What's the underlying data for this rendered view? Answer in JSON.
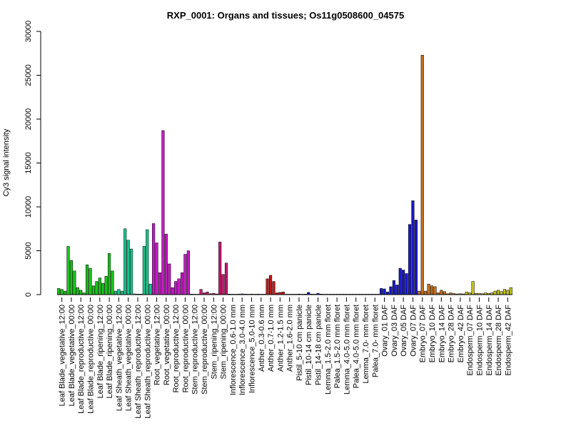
{
  "chart_data": {
    "type": "bar",
    "title": "RXP_0001: Organs and tissues; Os11g0508600_04575",
    "ylabel": "Cy3 signal intensity",
    "xlabel": "",
    "ylim": [
      0,
      30000
    ],
    "yticks": [
      0,
      5000,
      10000,
      15000,
      20000,
      25000,
      30000
    ],
    "grid": false,
    "groups": [
      {
        "label": "Leaf Blade_vegetative_12:00",
        "color": "#19c419",
        "values": [
          700,
          600,
          400
        ]
      },
      {
        "label": "Leaf Blade_vegetative_00:00",
        "color": "#19c419",
        "values": [
          5500,
          3900,
          2700
        ]
      },
      {
        "label": "Leaf Blade_reproductive_12:00",
        "color": "#19c419",
        "values": [
          800,
          500,
          200
        ]
      },
      {
        "label": "Leaf Blade_reproductive_00:00",
        "color": "#19c419",
        "values": [
          3400,
          3000,
          1000
        ]
      },
      {
        "label": "Leaf Blade_ripening_12:00",
        "color": "#19c419",
        "values": [
          1500,
          1900,
          1300
        ]
      },
      {
        "label": "Leaf Blade_ripening_00:00",
        "color": "#19c419",
        "values": [
          2100,
          4700,
          2700
        ]
      },
      {
        "label": "Leaf Sheath_vegetative_12:00",
        "color": "#19c48c",
        "values": [
          400,
          600,
          400
        ]
      },
      {
        "label": "Leaf Sheath_vegetative_00:00",
        "color": "#19c48c",
        "values": [
          7500,
          6200,
          5200
        ]
      },
      {
        "label": "Leaf Sheath_reproductive_12:00",
        "color": "#19c48c",
        "values": [
          80,
          60,
          60
        ]
      },
      {
        "label": "Leaf Sheath_reproductive_00:00",
        "color": "#19c48c",
        "values": [
          5500,
          7400,
          1200
        ]
      },
      {
        "label": "Root_vegetative_12:00",
        "color": "#c419c4",
        "values": [
          8100,
          5900,
          2500
        ]
      },
      {
        "label": "Root_vegetative_00:00",
        "color": "#c419c4",
        "values": [
          18700,
          6900,
          3500
        ]
      },
      {
        "label": "Root_reproductive_12:00",
        "color": "#c419c4",
        "values": [
          800,
          1500,
          1800
        ]
      },
      {
        "label": "Root_reproductive_00:00",
        "color": "#c419c4",
        "values": [
          2500,
          4600,
          5000
        ]
      },
      {
        "label": "Stem_reproductive_12:00",
        "color": "#c4196e",
        "values": [
          60,
          50,
          50
        ]
      },
      {
        "label": "Stem_reproductive_00:00",
        "color": "#c4196e",
        "values": [
          600,
          200,
          300
        ]
      },
      {
        "label": "Stem_ripening_12:00",
        "color": "#c4196e",
        "values": [
          100,
          150,
          80
        ]
      },
      {
        "label": "Stem_ripening_00:00",
        "color": "#c4196e",
        "values": [
          6000,
          2300,
          3600
        ]
      },
      {
        "label": "Inflorescence_0.6-1.0 mm",
        "color": "#1919c4",
        "values": [
          60,
          50,
          50
        ]
      },
      {
        "label": "Inflorescence_3.0-4.0 mm",
        "color": "#1919c4",
        "values": [
          60,
          80,
          60
        ]
      },
      {
        "label": "Inflorescence_5.0-10 mm",
        "color": "#1919c4",
        "values": [
          50,
          60,
          50
        ]
      },
      {
        "label": "Anther_0.3-0.6 mm",
        "color": "#c41919",
        "values": [
          60,
          50,
          50
        ]
      },
      {
        "label": "Anther_0.7-1.0 mm",
        "color": "#c41919",
        "values": [
          1800,
          2200,
          1500
        ]
      },
      {
        "label": "Anther_1.2-1.5 mm",
        "color": "#c41919",
        "values": [
          200,
          250,
          300
        ]
      },
      {
        "label": "Anther_1.6-2.0 mm",
        "color": "#c41919",
        "values": [
          50,
          50,
          50
        ]
      },
      {
        "label": "Pistil_5-10 cm panicle",
        "color": "#1919c4",
        "values": [
          50,
          60,
          50
        ]
      },
      {
        "label": "Pistil_10-14 cm panicle",
        "color": "#1919c4",
        "values": [
          60,
          250,
          60
        ]
      },
      {
        "label": "Pistil_14-18 cm panicle",
        "color": "#1919c4",
        "values": [
          50,
          150,
          60
        ]
      },
      {
        "label": "Lemma_1.5-2.0 mm floret",
        "color": "#1919c4",
        "values": [
          50,
          50,
          50
        ]
      },
      {
        "label": "Palea_1.5-2.0 mm floret",
        "color": "#1919c4",
        "values": [
          50,
          50,
          50
        ]
      },
      {
        "label": "Lemma_4.0-5.0 mm floret",
        "color": "#1919c4",
        "values": [
          50,
          50,
          50
        ]
      },
      {
        "label": "Palea_4.0-5.0 mm floret",
        "color": "#1919c4",
        "values": [
          50,
          50,
          50
        ]
      },
      {
        "label": "Lemma_7.0- mm floret",
        "color": "#1919c4",
        "values": [
          50,
          50,
          50
        ]
      },
      {
        "label": "Palea_7.0- mm floret",
        "color": "#1919c4",
        "values": [
          50,
          50,
          50
        ]
      },
      {
        "label": "Ovary_01 DAF",
        "color": "#1919c4",
        "values": [
          700,
          650,
          300
        ]
      },
      {
        "label": "Ovary_03 DAF",
        "color": "#1919c4",
        "values": [
          900,
          1600,
          1100
        ]
      },
      {
        "label": "Ovary_05 DAF",
        "color": "#1919c4",
        "values": [
          3000,
          2800,
          2400
        ]
      },
      {
        "label": "Ovary_07 DAF",
        "color": "#1919c4",
        "values": [
          8000,
          10700,
          8500
        ]
      },
      {
        "label": "Embryo_07 DAF",
        "color": "#c46e19",
        "values": [
          400,
          27300,
          400
        ]
      },
      {
        "label": "Embryo_10 DAF",
        "color": "#c46e19",
        "values": [
          1200,
          1000,
          900
        ]
      },
      {
        "label": "Embryo_14 DAF",
        "color": "#c46e19",
        "values": [
          200,
          500,
          350
        ]
      },
      {
        "label": "Embryo_28 DAF",
        "color": "#c46e19",
        "values": [
          100,
          200,
          120
        ]
      },
      {
        "label": "Embryo_42 DAF",
        "color": "#c46e19",
        "values": [
          80,
          100,
          80
        ]
      },
      {
        "label": "Endosperm_07 DAF",
        "color": "#c4c419",
        "values": [
          300,
          200,
          1500
        ]
      },
      {
        "label": "Endosperm_10 DAF",
        "color": "#c4c419",
        "values": [
          150,
          150,
          100
        ]
      },
      {
        "label": "Endosperm_14 DAF",
        "color": "#c4c419",
        "values": [
          200,
          150,
          200
        ]
      },
      {
        "label": "Endosperm_28 DAF",
        "color": "#c4c419",
        "values": [
          400,
          500,
          350
        ]
      },
      {
        "label": "Endosperm_42 DAF",
        "color": "#c4c419",
        "values": [
          600,
          500,
          800
        ]
      }
    ]
  }
}
